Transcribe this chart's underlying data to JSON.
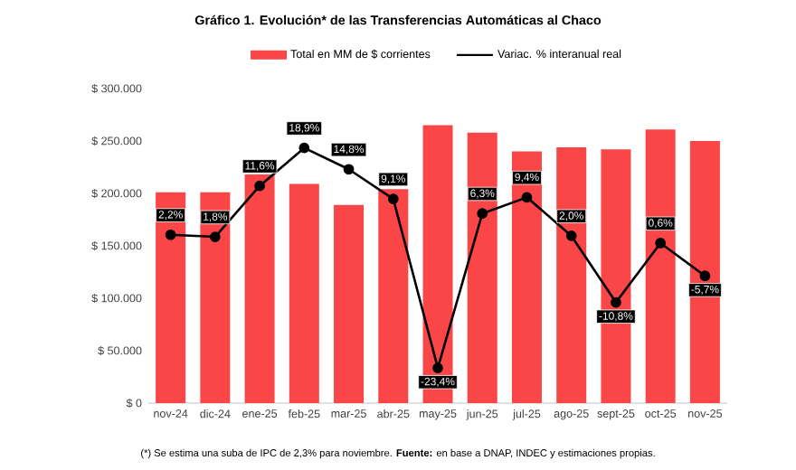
{
  "chart_data": {
    "type": "bar",
    "title": "Gráfico 1. Evolución* de las Transferencias Automáticas al Chaco",
    "categories": [
      "nov-24",
      "dic-24",
      "ene-25",
      "feb-25",
      "mar-25",
      "abr-25",
      "may-25",
      "jun-25",
      "jul-25",
      "ago-25",
      "sept-25",
      "oct-25",
      "nov-25"
    ],
    "series": [
      {
        "name": "Total en MM de $ corrientes",
        "color": "#fa4646",
        "values": [
          201000,
          201000,
          218000,
          209000,
          189000,
          204000,
          265000,
          258000,
          240000,
          244000,
          242000,
          261000,
          250000
        ]
      },
      {
        "name": "Variac. % interanual real",
        "type": "line",
        "axis": "y2",
        "color": "#000000",
        "marker": "circle",
        "line_style": "solid",
        "values": [
          2.2,
          1.8,
          11.6,
          18.9,
          14.8,
          9.1,
          -23.4,
          6.3,
          9.4,
          2.0,
          -10.8,
          0.6,
          -5.7
        ],
        "value_labels": [
          "2,2%",
          "1,8%",
          "11,6%",
          "18,9%",
          "14,8%",
          "9,1%",
          "-23,4%",
          "6,3%",
          "9,4%",
          "2,0%",
          "-10,8%",
          "0,6%",
          "-5,7%"
        ]
      }
    ],
    "ylim": [
      0,
      300000
    ],
    "yticks": [
      {
        "value": 0,
        "label": "$ 0"
      },
      {
        "value": 50000,
        "label": "$ 50.000"
      },
      {
        "value": 100000,
        "label": "$ 100.000"
      },
      {
        "value": 150000,
        "label": "$ 150.000"
      },
      {
        "value": 200000,
        "label": "$ 200.000"
      },
      {
        "value": 250000,
        "label": "$ 250.000"
      },
      {
        "value": 300000,
        "label": "$ 300.000"
      }
    ],
    "grid": false,
    "legend": "top",
    "annotations": [
      "(*) Se estima una suba de IPC de 2,3% para noviembre. **Fuente:** en base a DNAP, INDEC y estimaciones propias."
    ]
  }
}
